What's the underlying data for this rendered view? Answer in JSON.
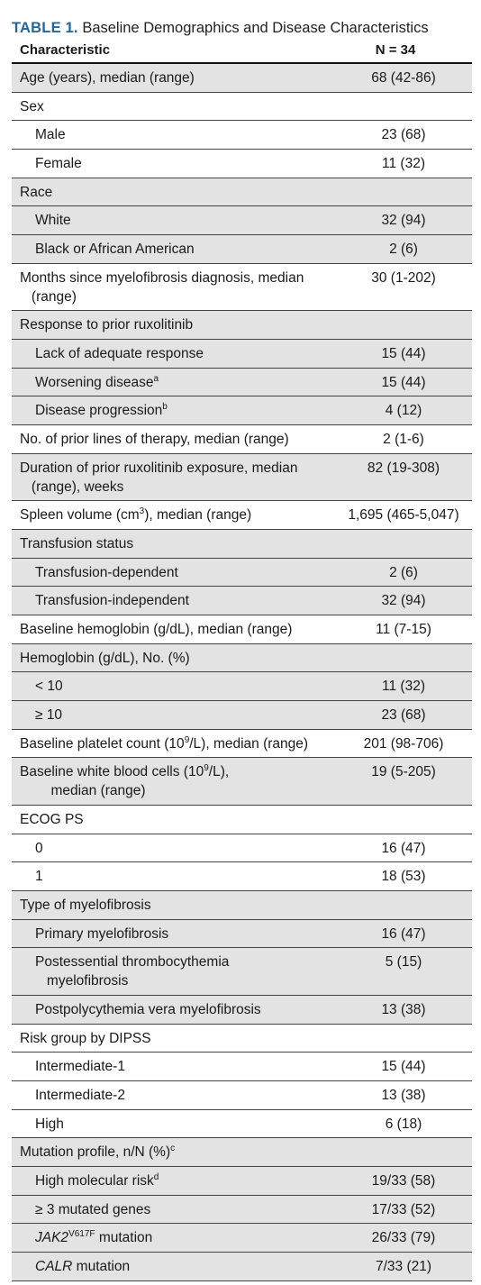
{
  "table": {
    "title_label": "TABLE 1.",
    "title_text": "Baseline Demographics and Disease Characteristics",
    "header": {
      "characteristic": "Characteristic",
      "n": "N = 34"
    },
    "rows": [
      {
        "label": "Age (years), median (range)",
        "value": "68 (42-86)",
        "indent": false,
        "shade": true,
        "lines": 1
      },
      {
        "label": "Sex",
        "value": "",
        "indent": false,
        "shade": false,
        "lines": 1
      },
      {
        "label": "Male",
        "value": "23 (68)",
        "indent": true,
        "shade": false,
        "lines": 1
      },
      {
        "label": "Female",
        "value": "11 (32)",
        "indent": true,
        "shade": false,
        "lines": 1
      },
      {
        "label": "Race",
        "value": "",
        "indent": false,
        "shade": true,
        "lines": 1
      },
      {
        "label": "White",
        "value": "32 (94)",
        "indent": true,
        "shade": true,
        "lines": 1
      },
      {
        "label": "Black or African American",
        "value": "2 (6)",
        "indent": true,
        "shade": true,
        "lines": 1
      },
      {
        "label": "Months since myelofibrosis diagnosis, median\n   (range)",
        "value": "30 (1-202)",
        "indent": false,
        "shade": false,
        "lines": 2
      },
      {
        "label": "Response to prior ruxolitinib",
        "value": "",
        "indent": false,
        "shade": true,
        "lines": 1
      },
      {
        "label": "Lack of adequate response",
        "value": "15 (44)",
        "indent": true,
        "shade": true,
        "lines": 1
      },
      {
        "label": "Worsening disease",
        "sup": "a",
        "value": "15 (44)",
        "indent": true,
        "shade": true,
        "lines": 1
      },
      {
        "label": "Disease progression",
        "sup": "b",
        "value": "4 (12)",
        "indent": true,
        "shade": true,
        "lines": 1
      },
      {
        "label": "No. of prior lines of therapy, median (range)",
        "value": "2 (1-6)",
        "indent": false,
        "shade": false,
        "lines": 1
      },
      {
        "label": "Duration of prior ruxolitinib exposure, median\n   (range), weeks",
        "value": "82 (19-308)",
        "indent": false,
        "shade": true,
        "lines": 2
      },
      {
        "label": "Spleen volume (cm",
        "sup": "3",
        "label_after": "), median (range)",
        "value": "1,695 (465-5,047)",
        "indent": false,
        "shade": false,
        "lines": 1
      },
      {
        "label": "Transfusion status",
        "value": "",
        "indent": false,
        "shade": true,
        "lines": 1
      },
      {
        "label": "Transfusion-dependent",
        "value": "2 (6)",
        "indent": true,
        "shade": true,
        "lines": 1
      },
      {
        "label": "Transfusion-independent",
        "value": "32 (94)",
        "indent": true,
        "shade": true,
        "lines": 1
      },
      {
        "label": "Baseline hemoglobin (g/dL), median (range)",
        "value": "11 (7-15)",
        "indent": false,
        "shade": false,
        "lines": 1
      },
      {
        "label": "Hemoglobin (g/dL), No. (%)",
        "value": "",
        "indent": false,
        "shade": true,
        "lines": 1
      },
      {
        "label": "< 10",
        "value": "11 (32)",
        "indent": true,
        "shade": true,
        "lines": 1
      },
      {
        "label": "≥ 10",
        "value": "23 (68)",
        "indent": true,
        "shade": true,
        "lines": 1
      },
      {
        "label": "Baseline platelet count (10",
        "sup": "9",
        "label_after": "/L), median (range)",
        "value": "201 (98-706)",
        "indent": false,
        "shade": false,
        "lines": 1
      },
      {
        "label": "Baseline white blood cells (10",
        "sup": "9",
        "label_after": "/L),\n        median (range)",
        "value": "19 (5-205)",
        "indent": false,
        "shade": true,
        "lines": 2
      },
      {
        "label": "ECOG PS",
        "value": "",
        "indent": false,
        "shade": false,
        "lines": 1
      },
      {
        "label": "0",
        "value": "16 (47)",
        "indent": true,
        "shade": false,
        "lines": 1
      },
      {
        "label": "1",
        "value": "18 (53)",
        "indent": true,
        "shade": false,
        "lines": 1
      },
      {
        "label": "Type of myelofibrosis",
        "value": "",
        "indent": false,
        "shade": true,
        "lines": 1
      },
      {
        "label": "Primary myelofibrosis",
        "value": "16 (47)",
        "indent": true,
        "shade": true,
        "lines": 1
      },
      {
        "label": "Postessential thrombocythemia\n   myelofibrosis",
        "value": "5 (15)",
        "indent": true,
        "shade": true,
        "lines": 2
      },
      {
        "label": "Postpolycythemia vera myelofibrosis",
        "value": "13 (38)",
        "indent": true,
        "shade": true,
        "lines": 1
      },
      {
        "label": "Risk group by DIPSS",
        "value": "",
        "indent": false,
        "shade": false,
        "lines": 1
      },
      {
        "label": "Intermediate-1",
        "value": "15 (44)",
        "indent": true,
        "shade": false,
        "lines": 1
      },
      {
        "label": "Intermediate-2",
        "value": "13 (38)",
        "indent": true,
        "shade": false,
        "lines": 1
      },
      {
        "label": "High",
        "value": "6 (18)",
        "indent": true,
        "shade": false,
        "lines": 1
      },
      {
        "label": "Mutation profile, n/N (%)",
        "sup": "c",
        "value": "",
        "indent": false,
        "shade": true,
        "lines": 1
      },
      {
        "label": "High molecular risk",
        "sup": "d",
        "value": "19/33 (58)",
        "indent": true,
        "shade": true,
        "lines": 1
      },
      {
        "label": "≥ 3 mutated genes",
        "value": "17/33 (52)",
        "indent": true,
        "shade": true,
        "lines": 1
      },
      {
        "label": "JAK2",
        "italic": true,
        "sup": "V617F",
        "label_after": " mutation",
        "value": "26/33 (79)",
        "indent": true,
        "shade": true,
        "lines": 1
      },
      {
        "label": "CALR",
        "italic": true,
        "label_after": " mutation",
        "value": "7/33 (21)",
        "indent": true,
        "shade": true,
        "lines": 1
      }
    ]
  }
}
